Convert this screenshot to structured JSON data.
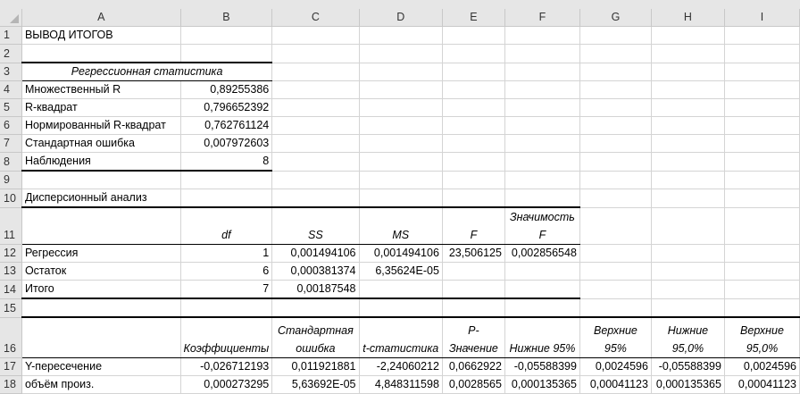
{
  "columns": [
    "A",
    "B",
    "C",
    "D",
    "E",
    "F",
    "G",
    "H",
    "I"
  ],
  "r1": {
    "a": "ВЫВОД ИТОГОВ"
  },
  "r3": {
    "a": "Регрессионная статистика"
  },
  "stats": [
    {
      "label": "Множественный R",
      "value": "0,89255386"
    },
    {
      "label": "R-квадрат",
      "value": "0,796652392"
    },
    {
      "label": "Нормированный R-квадрат",
      "value": "0,762761124"
    },
    {
      "label": "Стандартная ошибка",
      "value": "0,007972603"
    },
    {
      "label": "Наблюдения",
      "value": "8"
    }
  ],
  "r10": {
    "a": "Дисперсионный анализ"
  },
  "anova_headers": [
    "df",
    "SS",
    "MS",
    "F",
    "Значимость F"
  ],
  "anova": [
    {
      "label": "Регрессия",
      "df": "1",
      "ss": "0,001494106",
      "ms": "0,001494106",
      "f": "23,506125",
      "sig": "0,002856548"
    },
    {
      "label": "Остаток",
      "df": "6",
      "ss": "0,000381374",
      "ms": "6,35624E-05",
      "f": "",
      "sig": ""
    },
    {
      "label": "Итого",
      "df": "7",
      "ss": "0,00187548",
      "ms": "",
      "f": "",
      "sig": ""
    }
  ],
  "coef_headers": [
    "Коэффициенты",
    "Стандартная ошибка",
    "t-статистика",
    "P-Значение",
    "Нижние 95%",
    "Верхние 95%",
    "Нижние 95,0%",
    "Верхние 95,0%"
  ],
  "coef": [
    {
      "label": "Y-пересечение",
      "v": [
        "-0,026712193",
        "0,011921881",
        "-2,24060212",
        "0,0662922",
        "-0,05588399",
        "0,0024596",
        "-0,05588399",
        "0,0024596"
      ]
    },
    {
      "label": "объём произ.",
      "v": [
        "0,000273295",
        "5,63692E-05",
        "4,848311598",
        "0,0028565",
        "0,000135365",
        "0,00041123",
        "0,000135365",
        "0,00041123"
      ]
    }
  ]
}
